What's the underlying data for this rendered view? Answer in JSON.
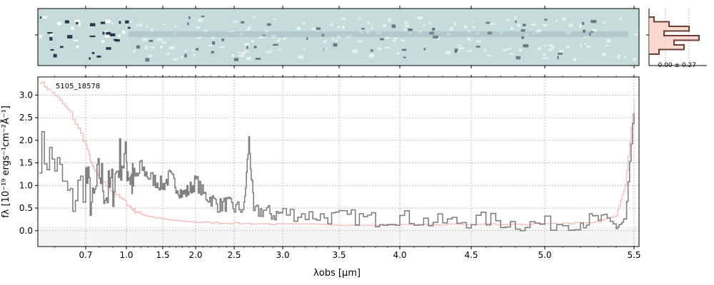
{
  "chart_data": [
    {
      "type": "heatmap",
      "panel": "2d-spectrum",
      "description_colors": {
        "background": "#c5dcdb",
        "dark": "#1a2540",
        "light": "#ffffff"
      },
      "x_ticks": [
        "0.7",
        "1.0",
        "1.5",
        "2.0",
        "2.5",
        "3.0",
        "3.5",
        "4.0",
        "4.5",
        "5.0",
        "5.5"
      ]
    },
    {
      "type": "line",
      "panel": "1d-spectrum",
      "label": "5105_18578",
      "xlabel": "λobs [μm]",
      "ylabel": "fλ [10⁻¹⁹ ergs⁻¹cm⁻²Å⁻¹]",
      "x_ticks": [
        "0.7",
        "1.0",
        "1.5",
        "2.0",
        "2.5",
        "3.0",
        "3.5",
        "4.0",
        "4.5",
        "5.0",
        "5.5"
      ],
      "y_ticks": [
        "0.0",
        "0.5",
        "1.0",
        "1.5",
        "2.0",
        "2.5",
        "3.0"
      ],
      "ylim": [
        -0.35,
        3.4
      ],
      "grid": true,
      "series": [
        {
          "role": "flux",
          "color": "#808080",
          "x": [
            0.55,
            0.6,
            0.65,
            0.7,
            0.75,
            0.8,
            0.85,
            0.9,
            0.95,
            1.0,
            1.05,
            1.1,
            1.2,
            1.3,
            1.4,
            1.5,
            1.6,
            1.7,
            1.8,
            1.9,
            2.0,
            2.1,
            2.2,
            2.3,
            2.4,
            2.5,
            2.6,
            2.65,
            2.7,
            2.8,
            2.9,
            3.0,
            3.2,
            3.4,
            3.6,
            3.8,
            4.0,
            4.2,
            4.4,
            4.6,
            4.8,
            5.0,
            5.2,
            5.3,
            5.4,
            5.45,
            5.5
          ],
          "y": [
            1.8,
            1.5,
            0.6,
            1.2,
            0.5,
            1.3,
            0.8,
            1.0,
            1.6,
            1.5,
            1.2,
            1.0,
            1.4,
            1.2,
            1.1,
            1.0,
            1.2,
            1.0,
            0.8,
            0.9,
            1.1,
            0.8,
            0.7,
            0.55,
            0.6,
            0.5,
            0.5,
            2.0,
            0.4,
            0.45,
            0.35,
            0.4,
            0.35,
            0.3,
            0.3,
            0.25,
            0.3,
            0.2,
            0.2,
            0.25,
            0.15,
            0.15,
            0.2,
            0.25,
            0.1,
            0.2,
            2.6
          ]
        },
        {
          "role": "error",
          "color": "#f7c4c4",
          "x": [
            0.55,
            0.6,
            0.65,
            0.7,
            0.75,
            0.8,
            0.9,
            1.0,
            1.1,
            1.2,
            1.3,
            1.5,
            1.7,
            2.0,
            2.3,
            2.6,
            3.0,
            3.5,
            4.0,
            4.5,
            5.0,
            5.2,
            5.3,
            5.4,
            5.45,
            5.5
          ],
          "y": [
            3.3,
            3.0,
            2.6,
            1.9,
            1.4,
            1.15,
            0.85,
            0.6,
            0.45,
            0.37,
            0.32,
            0.26,
            0.22,
            0.19,
            0.17,
            0.16,
            0.14,
            0.13,
            0.13,
            0.14,
            0.15,
            0.17,
            0.2,
            0.35,
            1.0,
            2.9
          ]
        }
      ]
    },
    {
      "type": "bar",
      "panel": "cross-dispersion-profile",
      "annotation": "-0.00 ± 0.27",
      "values": [
        0.1,
        0.4,
        0.8,
        0.3,
        1.0,
        0.5,
        0.7,
        0.2
      ]
    }
  ]
}
